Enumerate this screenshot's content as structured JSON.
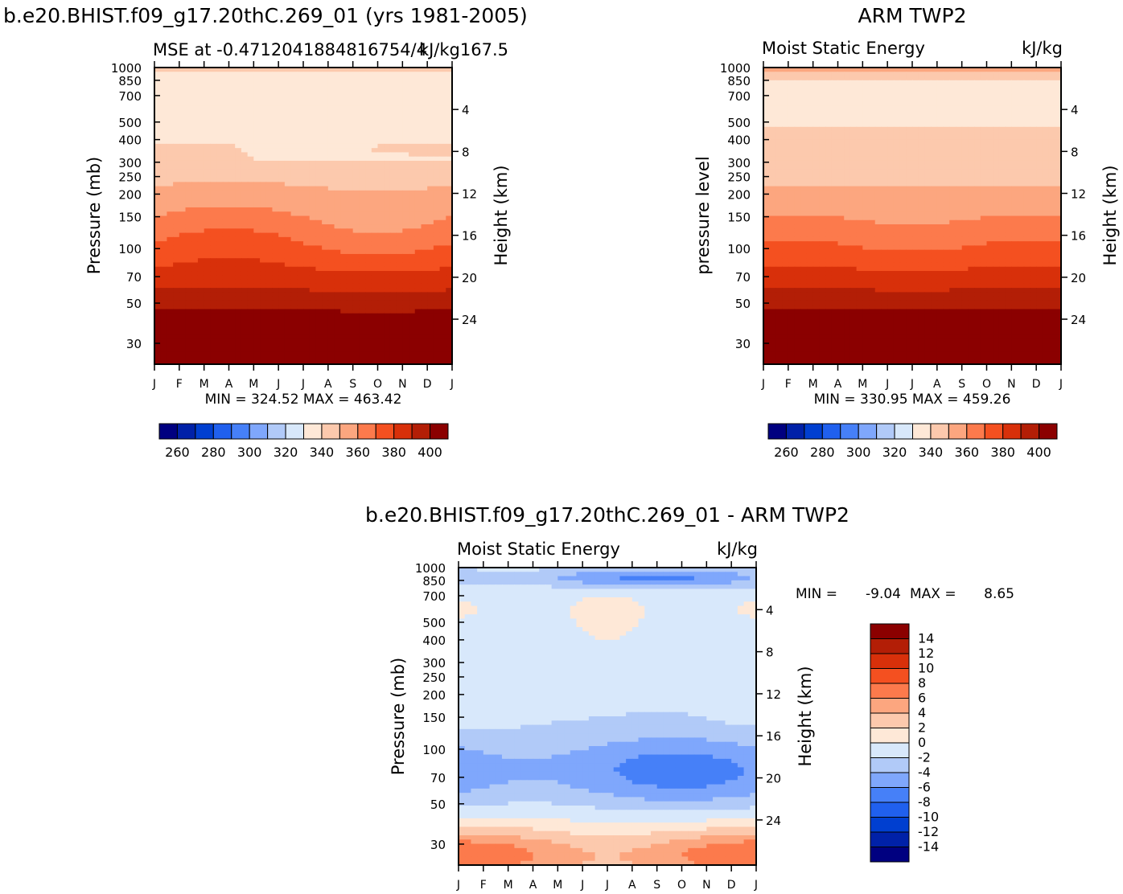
{
  "chart_data": [
    {
      "id": "model",
      "type": "heatmap",
      "title": "b.e20.BHIST.f09_g17.20thC.269_01 (yrs 1981-2005)",
      "subtitle_left": "MSE at -0.4712041884816754/4",
      "subtitle_right": "kJ/kg167.5",
      "ylabel": "Pressure (mb)",
      "ylabel2": "Height (km)",
      "months": [
        "J",
        "F",
        "M",
        "A",
        "M",
        "J",
        "J",
        "A",
        "S",
        "O",
        "N",
        "D",
        "J"
      ],
      "pressure_ticks": [
        "30",
        "50",
        "70",
        "100",
        "150",
        "200",
        "250",
        "300",
        "400",
        "500",
        "700",
        "850",
        "1000"
      ],
      "pressure_values": [
        30,
        50,
        70,
        100,
        150,
        200,
        250,
        300,
        400,
        500,
        700,
        850,
        1000
      ],
      "height_ticks": [
        "24",
        "20",
        "16",
        "12",
        "8",
        "4"
      ],
      "height_values": [
        24,
        20,
        16,
        12,
        8,
        4
      ],
      "ylim_mb": [
        1000,
        23
      ],
      "stats": "MIN = 324.52 MAX = 463.42",
      "field": "mse"
    },
    {
      "id": "obs",
      "type": "heatmap",
      "title": "ARM TWP2",
      "subtitle_left": "Moist Static Energy",
      "subtitle_right": "kJ/kg",
      "ylabel": "pressure level",
      "ylabel2": "Height (km)",
      "months": [
        "J",
        "F",
        "M",
        "A",
        "M",
        "J",
        "J",
        "A",
        "S",
        "O",
        "N",
        "D",
        "J"
      ],
      "pressure_ticks": [
        "30",
        "50",
        "70",
        "100",
        "150",
        "200",
        "250",
        "300",
        "400",
        "500",
        "700",
        "850",
        "1000"
      ],
      "pressure_values": [
        30,
        50,
        70,
        100,
        150,
        200,
        250,
        300,
        400,
        500,
        700,
        850,
        1000
      ],
      "height_ticks": [
        "24",
        "20",
        "16",
        "12",
        "8",
        "4"
      ],
      "height_values": [
        24,
        20,
        16,
        12,
        8,
        4
      ],
      "ylim_mb": [
        1000,
        23
      ],
      "stats": "MIN = 330.95 MAX = 459.26",
      "field": "mse"
    },
    {
      "id": "diff",
      "type": "heatmap",
      "title": "b.e20.BHIST.f09_g17.20thC.269_01 - ARM TWP2",
      "subtitle_left": "Moist Static Energy",
      "subtitle_right": "kJ/kg",
      "ylabel": "Pressure (mb)",
      "ylabel2": "Height (km)",
      "months": [
        "J",
        "F",
        "M",
        "A",
        "M",
        "J",
        "J",
        "A",
        "S",
        "O",
        "N",
        "D",
        "J"
      ],
      "pressure_ticks": [
        "30",
        "50",
        "70",
        "100",
        "150",
        "200",
        "250",
        "300",
        "400",
        "500",
        "700",
        "850",
        "1000"
      ],
      "pressure_values": [
        30,
        50,
        70,
        100,
        150,
        200,
        250,
        300,
        400,
        500,
        700,
        850,
        1000
      ],
      "height_ticks": [
        "24",
        "20",
        "16",
        "12",
        "8",
        "4"
      ],
      "height_values": [
        24,
        20,
        16,
        12,
        8,
        4
      ],
      "ylim_mb": [
        1000,
        23
      ],
      "stats_min_label": "MIN =",
      "stats_min": "-9.04",
      "stats_max_label": "MAX =",
      "stats_max": "8.65",
      "field": "diff"
    }
  ],
  "colorbar_mse": {
    "colors": [
      "#000080",
      "#0021a8",
      "#003fd0",
      "#2060ee",
      "#4680f8",
      "#7fa7fc",
      "#b1caf8",
      "#d8e8fb",
      "#fee8d7",
      "#fcc9ad",
      "#fca67f",
      "#fc7a4c",
      "#f45020",
      "#d8300a",
      "#b31e06",
      "#8b0000"
    ],
    "labels": [
      "260",
      "280",
      "300",
      "320",
      "340",
      "360",
      "380",
      "400"
    ]
  },
  "colorbar_diff": {
    "colors": [
      "#000080",
      "#0021a8",
      "#003fd0",
      "#2060ee",
      "#4680f8",
      "#7fa7fc",
      "#b1caf8",
      "#d8e8fb",
      "#fee8d7",
      "#fcc9ad",
      "#fca67f",
      "#fc7a4c",
      "#f45020",
      "#d8300a",
      "#b31e06",
      "#8b0000"
    ],
    "labels": [
      "14",
      "12",
      "10",
      "8",
      "6",
      "4",
      "2",
      "0",
      "-2",
      "-4",
      "-6",
      "-8",
      "-10",
      "-12",
      "-14"
    ]
  },
  "mse_bounds": [
    250,
    260,
    270,
    280,
    290,
    300,
    310,
    320,
    330,
    340,
    350,
    360,
    370,
    380,
    390,
    400
  ],
  "diff_bounds": [
    -16,
    -14,
    -12,
    -10,
    -8,
    -6,
    -4,
    -2,
    0,
    2,
    4,
    6,
    8,
    10,
    12,
    14
  ]
}
